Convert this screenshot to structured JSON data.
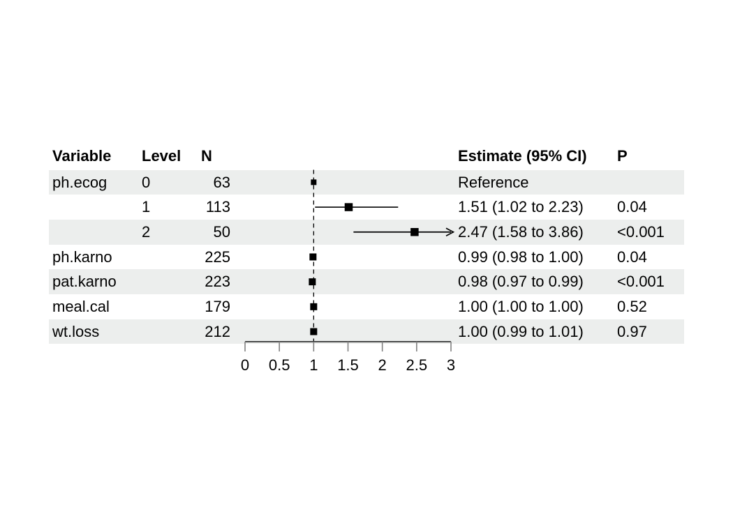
{
  "figure": {
    "headers": {
      "variable": "Variable",
      "level": "Level",
      "n": "N",
      "estimate": "Estimate (95% CI)",
      "p": "P"
    }
  },
  "colors": {
    "background": "#FFFFFF",
    "band": "#ECEEED",
    "text": "#000000",
    "line": "#000000",
    "axis_line": "#333333",
    "tick": "#808080"
  },
  "chart_data": {
    "type": "forest",
    "orientation": "horizontal",
    "title": "",
    "xlabel": "",
    "ylabel": "",
    "legend": null,
    "grid": false,
    "columns": [
      "Variable",
      "Level",
      "N",
      "Estimate (95% CI)",
      "P"
    ],
    "axis": {
      "min": 0,
      "max": 3,
      "ticks": [
        0,
        0.5,
        1,
        1.5,
        2,
        2.5,
        3
      ],
      "tick_labels": [
        "0",
        "0.5",
        "1",
        "1.5",
        "2",
        "2.5",
        "3"
      ],
      "reference_line": 1
    },
    "rows": [
      {
        "variable": "ph.ecog",
        "level": "0",
        "n": "63",
        "estimate": 1.0,
        "ci_lo": null,
        "ci_hi": null,
        "estimate_label": "Reference",
        "p": "",
        "reference": true,
        "arrow_right": false
      },
      {
        "variable": "",
        "level": "1",
        "n": "113",
        "estimate": 1.51,
        "ci_lo": 1.02,
        "ci_hi": 2.23,
        "estimate_label": "1.51 (1.02 to 2.23)",
        "p": "0.04",
        "reference": false,
        "arrow_right": false
      },
      {
        "variable": "",
        "level": "2",
        "n": "50",
        "estimate": 2.47,
        "ci_lo": 1.58,
        "ci_hi": 3.86,
        "estimate_label": "2.47 (1.58 to 3.86)",
        "p": "<0.001",
        "reference": false,
        "arrow_right": true
      },
      {
        "variable": "ph.karno",
        "level": "",
        "n": "225",
        "estimate": 0.99,
        "ci_lo": 0.98,
        "ci_hi": 1.0,
        "estimate_label": "0.99 (0.98 to 1.00)",
        "p": "0.04",
        "reference": false,
        "arrow_right": false
      },
      {
        "variable": "pat.karno",
        "level": "",
        "n": "223",
        "estimate": 0.98,
        "ci_lo": 0.97,
        "ci_hi": 0.99,
        "estimate_label": "0.98 (0.97 to 0.99)",
        "p": "<0.001",
        "reference": false,
        "arrow_right": false
      },
      {
        "variable": "meal.cal",
        "level": "",
        "n": "179",
        "estimate": 1.0,
        "ci_lo": 1.0,
        "ci_hi": 1.0,
        "estimate_label": "1.00 (1.00 to 1.00)",
        "p": "0.52",
        "reference": false,
        "arrow_right": false
      },
      {
        "variable": "wt.loss",
        "level": "",
        "n": "212",
        "estimate": 1.0,
        "ci_lo": 0.99,
        "ci_hi": 1.01,
        "estimate_label": "1.00 (0.99 to 1.01)",
        "p": "0.97",
        "reference": false,
        "arrow_right": false
      }
    ]
  }
}
